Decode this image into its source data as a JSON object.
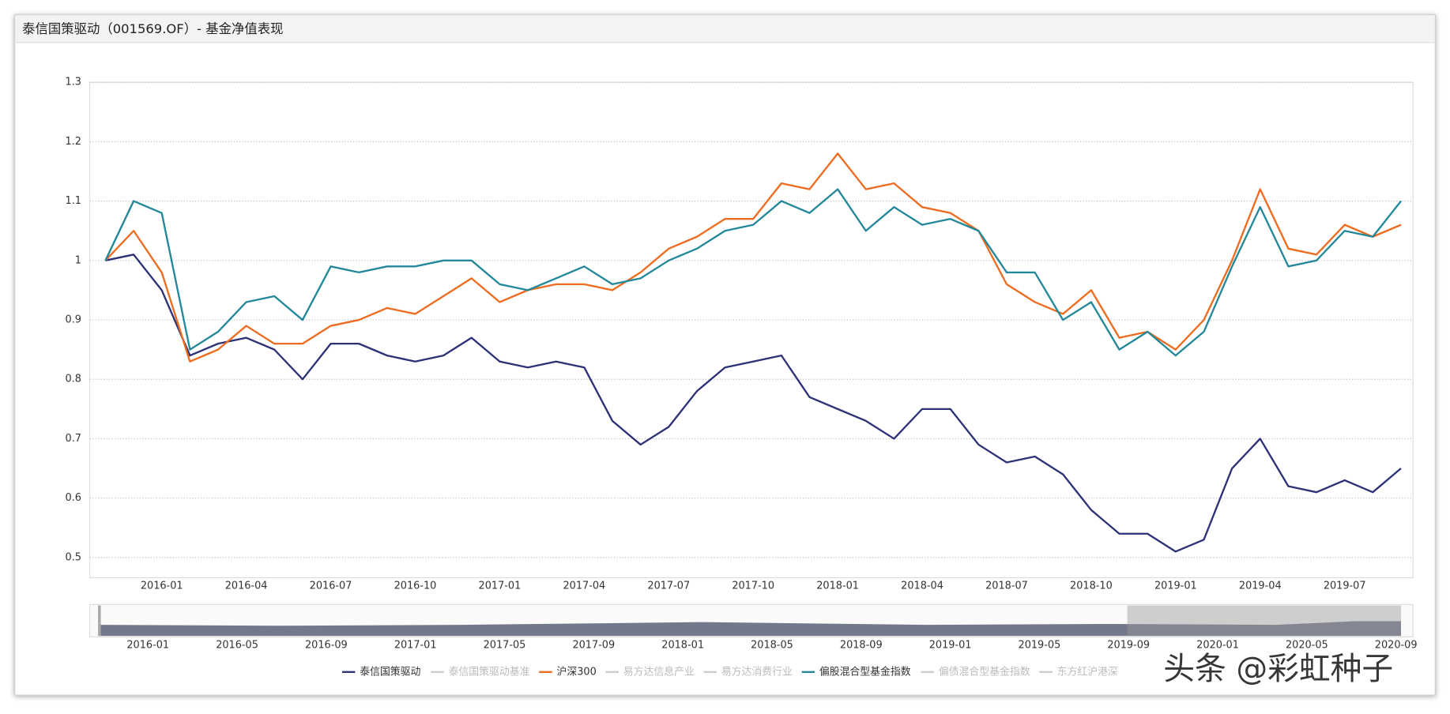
{
  "chart_data": {
    "type": "line",
    "title": "泰信国策驱动（001569.OF）- 基金净值表现",
    "categories": [
      null,
      null,
      "2016-01",
      null,
      null,
      "2016-04",
      null,
      null,
      "2016-07",
      null,
      null,
      "2016-10",
      null,
      null,
      "2017-01",
      null,
      null,
      "2017-04",
      null,
      null,
      "2017-07",
      null,
      null,
      "2017-10",
      null,
      null,
      "2018-01",
      null,
      null,
      "2018-04",
      null,
      null,
      "2018-07",
      null,
      null,
      "2018-10",
      null,
      null,
      "2019-01",
      null,
      null,
      "2019-04",
      null,
      null,
      "2019-07",
      null,
      null
    ],
    "series": [
      {
        "name": "泰信国策驱动",
        "color": "#2d3278",
        "values": [
          1.0,
          1.01,
          0.95,
          0.84,
          0.86,
          0.87,
          0.85,
          0.8,
          0.86,
          0.86,
          0.84,
          0.83,
          0.84,
          0.87,
          0.83,
          0.82,
          0.83,
          0.82,
          0.73,
          0.69,
          0.72,
          0.78,
          0.82,
          0.83,
          0.84,
          0.77,
          0.75,
          0.73,
          0.7,
          0.75,
          0.75,
          0.69,
          0.66,
          0.67,
          0.64,
          0.58,
          0.54,
          0.54,
          0.51,
          0.53,
          0.65,
          0.7,
          0.62,
          0.61,
          0.63,
          0.61,
          0.65
        ]
      },
      {
        "name": "沪深300",
        "color": "#ee6c1f",
        "values": [
          1.0,
          1.05,
          0.98,
          0.83,
          0.85,
          0.89,
          0.86,
          0.86,
          0.89,
          0.9,
          0.92,
          0.91,
          0.94,
          0.97,
          0.93,
          0.95,
          0.96,
          0.96,
          0.95,
          0.98,
          1.02,
          1.04,
          1.07,
          1.07,
          1.13,
          1.12,
          1.18,
          1.12,
          1.13,
          1.09,
          1.08,
          1.05,
          0.96,
          0.93,
          0.91,
          0.95,
          0.87,
          0.88,
          0.85,
          0.9,
          1.0,
          1.12,
          1.02,
          1.01,
          1.06,
          1.04,
          1.06
        ]
      },
      {
        "name": "偏股混合型基金指数",
        "color": "#23889a",
        "values": [
          1.0,
          1.1,
          1.08,
          0.85,
          0.88,
          0.93,
          0.94,
          0.9,
          0.99,
          0.98,
          0.99,
          0.99,
          1.0,
          1.0,
          0.96,
          0.95,
          0.97,
          0.99,
          0.96,
          0.97,
          1.0,
          1.02,
          1.05,
          1.06,
          1.1,
          1.08,
          1.12,
          1.05,
          1.09,
          1.06,
          1.07,
          1.05,
          0.98,
          0.98,
          0.9,
          0.93,
          0.85,
          0.88,
          0.84,
          0.88,
          0.99,
          1.09,
          0.99,
          1.0,
          1.05,
          1.04,
          1.1
        ]
      }
    ],
    "hidden_series": [
      "泰信国策驱动基准",
      "易方达信息产业",
      "易方达消费行业",
      "偏债混合型基金指数",
      "东方红沪港深"
    ],
    "ylim": [
      0.466,
      1.3
    ],
    "yticks": [
      0.5,
      0.6,
      0.7,
      0.8,
      0.9,
      1,
      1.1,
      1.2,
      1.3
    ],
    "grid": true,
    "legend": "bottom",
    "navigator_labels": [
      "2016-01",
      "2016-05",
      "2016-09",
      "2017-01",
      "2017-05",
      "2017-09",
      "2018-01",
      "2018-05",
      "2018-09",
      "2019-01",
      "2019-05",
      "2019-09",
      "2020-01",
      "2020-05",
      "2020-09"
    ],
    "watermark": "头条 @彩虹种子"
  }
}
